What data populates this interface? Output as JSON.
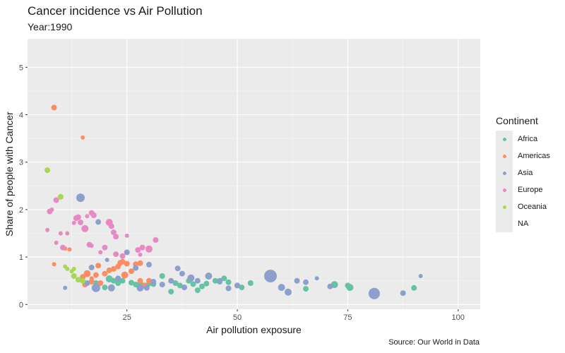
{
  "title": "Cancer incidence vs Air Pollution",
  "subtitle": "Year:1990",
  "caption": "Source: Our World in Data",
  "legend": {
    "title": "Continent",
    "items": [
      {
        "label": "Africa",
        "color": "#66c2a5"
      },
      {
        "label": "Americas",
        "color": "#fc8d62"
      },
      {
        "label": "Asia",
        "color": "#8da0cb"
      },
      {
        "label": "Europe",
        "color": "#e78ac3"
      },
      {
        "label": "Oceania",
        "color": "#a6d854"
      },
      {
        "label": "NA",
        "color": ""
      }
    ]
  },
  "chart_data": {
    "type": "scatter",
    "xlabel": "Air pollution exposure",
    "ylabel": "Share of people with Cancer",
    "xlim": [
      2.5,
      105
    ],
    "ylim": [
      -0.1,
      5.6
    ],
    "xticks": [
      25,
      50,
      75,
      100
    ],
    "yticks": [
      0,
      1,
      2,
      3,
      4,
      5
    ],
    "grid": true,
    "legend_position": "right",
    "series": [
      {
        "name": "Africa",
        "color": "#66c2a5",
        "points": [
          {
            "x": 21,
            "y": 0.54,
            "s": 5
          },
          {
            "x": 22,
            "y": 0.5,
            "s": 4
          },
          {
            "x": 23,
            "y": 0.45,
            "s": 4
          },
          {
            "x": 24,
            "y": 0.5,
            "s": 4
          },
          {
            "x": 26,
            "y": 0.46,
            "s": 4
          },
          {
            "x": 27,
            "y": 0.42,
            "s": 4
          },
          {
            "x": 28,
            "y": 0.45,
            "s": 4
          },
          {
            "x": 29,
            "y": 0.4,
            "s": 4
          },
          {
            "x": 30,
            "y": 0.44,
            "s": 4
          },
          {
            "x": 31,
            "y": 0.43,
            "s": 4
          },
          {
            "x": 33,
            "y": 0.6,
            "s": 4
          },
          {
            "x": 35,
            "y": 0.27,
            "s": 4
          },
          {
            "x": 36,
            "y": 0.45,
            "s": 4
          },
          {
            "x": 37,
            "y": 0.4,
            "s": 4
          },
          {
            "x": 38,
            "y": 0.36,
            "s": 4
          },
          {
            "x": 39,
            "y": 0.5,
            "s": 4
          },
          {
            "x": 40,
            "y": 0.43,
            "s": 4
          },
          {
            "x": 41,
            "y": 0.3,
            "s": 4
          },
          {
            "x": 42,
            "y": 0.38,
            "s": 4
          },
          {
            "x": 43,
            "y": 0.44,
            "s": 4
          },
          {
            "x": 45,
            "y": 0.5,
            "s": 4
          },
          {
            "x": 46,
            "y": 0.48,
            "s": 4
          },
          {
            "x": 47,
            "y": 0.55,
            "s": 4
          },
          {
            "x": 48,
            "y": 0.47,
            "s": 4
          },
          {
            "x": 50,
            "y": 0.4,
            "s": 4
          },
          {
            "x": 51,
            "y": 0.36,
            "s": 4
          },
          {
            "x": 53,
            "y": 0.45,
            "s": 4
          },
          {
            "x": 65.5,
            "y": 0.33,
            "s": 4
          },
          {
            "x": 72,
            "y": 0.42,
            "s": 5
          },
          {
            "x": 75,
            "y": 0.4,
            "s": 4
          },
          {
            "x": 75.5,
            "y": 0.36,
            "s": 5
          },
          {
            "x": 90,
            "y": 0.35,
            "s": 4
          },
          {
            "x": 20,
            "y": 0.36,
            "s": 4
          },
          {
            "x": 18,
            "y": 0.45,
            "s": 4
          }
        ]
      },
      {
        "name": "Americas",
        "color": "#fc8d62",
        "points": [
          {
            "x": 8.5,
            "y": 4.15,
            "s": 4
          },
          {
            "x": 15,
            "y": 3.52,
            "s": 3
          },
          {
            "x": 8.5,
            "y": 0.85,
            "s": 3
          },
          {
            "x": 11,
            "y": 1.18,
            "s": 3
          },
          {
            "x": 12,
            "y": 1.16,
            "s": 3
          },
          {
            "x": 15,
            "y": 0.58,
            "s": 4
          },
          {
            "x": 16,
            "y": 0.65,
            "s": 5
          },
          {
            "x": 17,
            "y": 0.55,
            "s": 3
          },
          {
            "x": 18,
            "y": 0.62,
            "s": 4
          },
          {
            "x": 18.5,
            "y": 0.82,
            "s": 4
          },
          {
            "x": 20,
            "y": 0.65,
            "s": 4
          },
          {
            "x": 21,
            "y": 0.72,
            "s": 4
          },
          {
            "x": 22,
            "y": 0.75,
            "s": 4
          },
          {
            "x": 23,
            "y": 0.8,
            "s": 4
          },
          {
            "x": 23.5,
            "y": 0.88,
            "s": 4
          },
          {
            "x": 24,
            "y": 0.9,
            "s": 4
          },
          {
            "x": 24.5,
            "y": 0.62,
            "s": 5
          },
          {
            "x": 25,
            "y": 0.86,
            "s": 4
          },
          {
            "x": 26,
            "y": 0.7,
            "s": 4
          },
          {
            "x": 27,
            "y": 0.85,
            "s": 4
          },
          {
            "x": 28,
            "y": 0.87,
            "s": 4
          },
          {
            "x": 28,
            "y": 0.5,
            "s": 4
          },
          {
            "x": 29,
            "y": 0.4,
            "s": 4
          },
          {
            "x": 30,
            "y": 0.5,
            "s": 4
          },
          {
            "x": 15.5,
            "y": 0.42,
            "s": 4
          },
          {
            "x": 17,
            "y": 0.48,
            "s": 4
          },
          {
            "x": 19,
            "y": 0.45,
            "s": 4
          }
        ]
      },
      {
        "name": "Asia",
        "color": "#8da0cb",
        "points": [
          {
            "x": 14.5,
            "y": 2.25,
            "s": 6
          },
          {
            "x": 11,
            "y": 0.35,
            "s": 3
          },
          {
            "x": 16,
            "y": 0.45,
            "s": 4
          },
          {
            "x": 17,
            "y": 0.78,
            "s": 4
          },
          {
            "x": 18,
            "y": 0.35,
            "s": 6
          },
          {
            "x": 18.5,
            "y": 1.74,
            "s": 4
          },
          {
            "x": 20.5,
            "y": 0.94,
            "s": 3
          },
          {
            "x": 21.5,
            "y": 0.35,
            "s": 5
          },
          {
            "x": 23,
            "y": 0.55,
            "s": 4
          },
          {
            "x": 25,
            "y": 1.1,
            "s": 4
          },
          {
            "x": 27,
            "y": 0.77,
            "s": 4
          },
          {
            "x": 28,
            "y": 0.35,
            "s": 5
          },
          {
            "x": 29.5,
            "y": 0.35,
            "s": 4
          },
          {
            "x": 30,
            "y": 0.84,
            "s": 4
          },
          {
            "x": 31,
            "y": 0.48,
            "s": 4
          },
          {
            "x": 33,
            "y": 0.42,
            "s": 4
          },
          {
            "x": 35,
            "y": 0.5,
            "s": 4
          },
          {
            "x": 36.5,
            "y": 0.76,
            "s": 4
          },
          {
            "x": 37.5,
            "y": 0.65,
            "s": 4
          },
          {
            "x": 38,
            "y": 0.36,
            "s": 4
          },
          {
            "x": 39.5,
            "y": 0.56,
            "s": 5
          },
          {
            "x": 41,
            "y": 0.5,
            "s": 4
          },
          {
            "x": 43.5,
            "y": 0.6,
            "s": 5
          },
          {
            "x": 46,
            "y": 0.5,
            "s": 4
          },
          {
            "x": 48,
            "y": 0.34,
            "s": 4
          },
          {
            "x": 50,
            "y": 0.4,
            "s": 4
          },
          {
            "x": 57.5,
            "y": 0.6,
            "s": 9
          },
          {
            "x": 60,
            "y": 0.36,
            "s": 5
          },
          {
            "x": 61.5,
            "y": 0.26,
            "s": 5
          },
          {
            "x": 63.5,
            "y": 0.5,
            "s": 4
          },
          {
            "x": 65.5,
            "y": 0.47,
            "s": 4
          },
          {
            "x": 68,
            "y": 0.55,
            "s": 3
          },
          {
            "x": 71,
            "y": 0.38,
            "s": 4
          },
          {
            "x": 81,
            "y": 0.23,
            "s": 8
          },
          {
            "x": 87.5,
            "y": 0.24,
            "s": 4
          },
          {
            "x": 91.5,
            "y": 0.6,
            "s": 3
          }
        ]
      },
      {
        "name": "Europe",
        "color": "#e78ac3",
        "points": [
          {
            "x": 7.5,
            "y": 1.96,
            "s": 4
          },
          {
            "x": 8,
            "y": 2.0,
            "s": 3
          },
          {
            "x": 7,
            "y": 1.57,
            "s": 3
          },
          {
            "x": 9,
            "y": 2.2,
            "s": 4
          },
          {
            "x": 9,
            "y": 1.3,
            "s": 3
          },
          {
            "x": 10,
            "y": 1.5,
            "s": 3
          },
          {
            "x": 10.5,
            "y": 1.2,
            "s": 4
          },
          {
            "x": 11.5,
            "y": 1.5,
            "s": 3
          },
          {
            "x": 13,
            "y": 1.72,
            "s": 3
          },
          {
            "x": 13.5,
            "y": 1.82,
            "s": 4
          },
          {
            "x": 14,
            "y": 1.84,
            "s": 4
          },
          {
            "x": 14.5,
            "y": 1.73,
            "s": 4
          },
          {
            "x": 15.5,
            "y": 1.6,
            "s": 5
          },
          {
            "x": 16,
            "y": 1.86,
            "s": 3
          },
          {
            "x": 17,
            "y": 1.93,
            "s": 4
          },
          {
            "x": 17.5,
            "y": 1.88,
            "s": 4
          },
          {
            "x": 16.5,
            "y": 1.26,
            "s": 4
          },
          {
            "x": 17,
            "y": 1.24,
            "s": 3
          },
          {
            "x": 19,
            "y": 1.1,
            "s": 3
          },
          {
            "x": 20,
            "y": 1.2,
            "s": 4
          },
          {
            "x": 21,
            "y": 1.73,
            "s": 5
          },
          {
            "x": 21.5,
            "y": 1.65,
            "s": 4
          },
          {
            "x": 22,
            "y": 1.52,
            "s": 4
          },
          {
            "x": 22.5,
            "y": 1.43,
            "s": 4
          },
          {
            "x": 22.5,
            "y": 1.06,
            "s": 4
          },
          {
            "x": 24,
            "y": 1.02,
            "s": 4
          },
          {
            "x": 25,
            "y": 1.45,
            "s": 3
          },
          {
            "x": 27.5,
            "y": 1.15,
            "s": 4
          },
          {
            "x": 28.5,
            "y": 1.2,
            "s": 4
          },
          {
            "x": 30,
            "y": 1.17,
            "s": 5
          },
          {
            "x": 31.5,
            "y": 1.36,
            "s": 4
          },
          {
            "x": 28,
            "y": 1.05,
            "s": 3
          }
        ]
      },
      {
        "name": "Oceania",
        "color": "#a6d854",
        "points": [
          {
            "x": 7,
            "y": 2.83,
            "s": 4
          },
          {
            "x": 10,
            "y": 2.27,
            "s": 4
          },
          {
            "x": 11,
            "y": 0.8,
            "s": 3
          },
          {
            "x": 11.5,
            "y": 0.75,
            "s": 3
          },
          {
            "x": 12.5,
            "y": 0.7,
            "s": 3
          },
          {
            "x": 13,
            "y": 0.75,
            "s": 3
          },
          {
            "x": 13,
            "y": 0.6,
            "s": 4
          },
          {
            "x": 14,
            "y": 0.52,
            "s": 4
          },
          {
            "x": 15,
            "y": 0.5,
            "s": 4
          }
        ]
      }
    ]
  }
}
